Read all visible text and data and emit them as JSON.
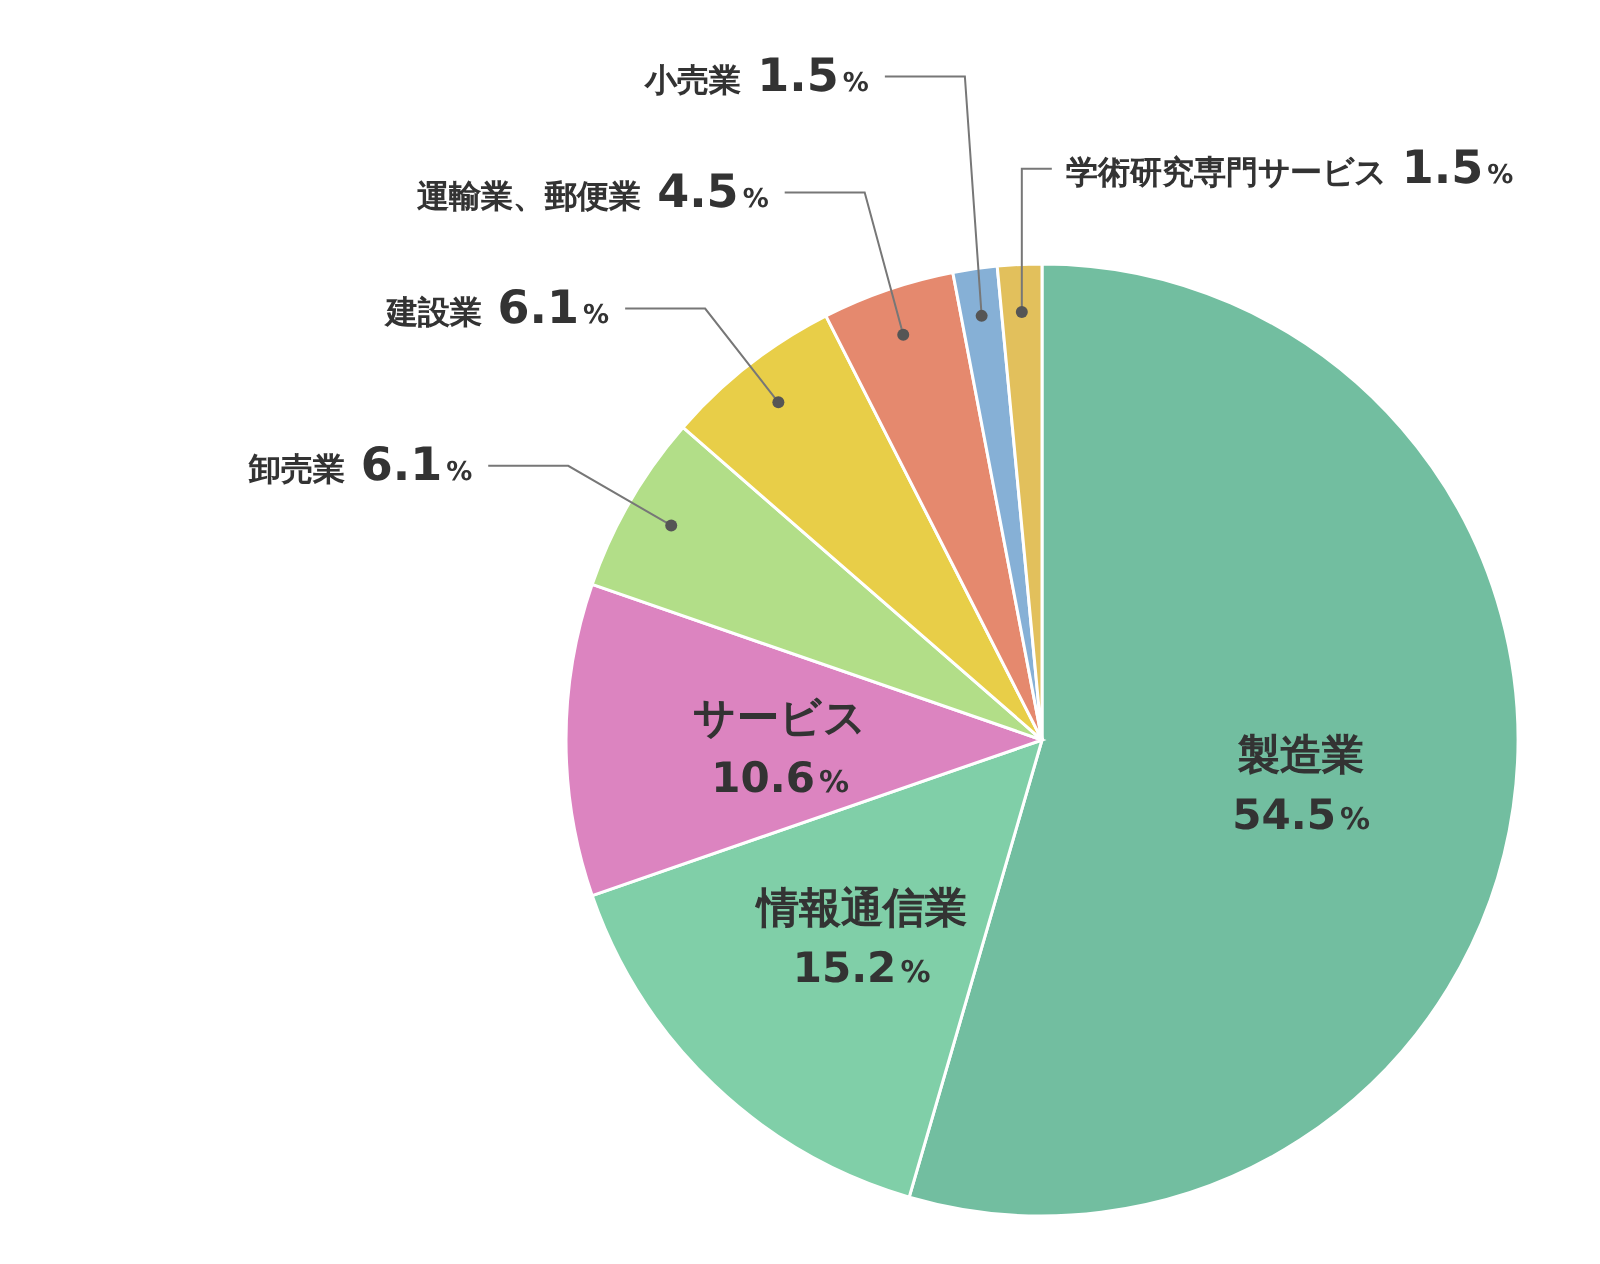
{
  "chart_data": {
    "type": "pie",
    "categories": [
      "製造業",
      "情報通信業",
      "サービス",
      "卸売業",
      "建設業",
      "運輸業、郵便業",
      "小売業",
      "学術研究専門サービス"
    ],
    "values": [
      54.5,
      15.2,
      10.6,
      6.1,
      6.1,
      4.5,
      1.5,
      1.5
    ],
    "colors": [
      "#72bea0",
      "#80cfa8",
      "#dc84c0",
      "#b2de88",
      "#e8ce48",
      "#e5896e",
      "#86b0d6",
      "#e2c05c"
    ],
    "value_labels": [
      "54.5%",
      "15.2%",
      "10.6%",
      "6.1%",
      "6.1%",
      "4.5%",
      "1.5%",
      "1.5%"
    ]
  }
}
